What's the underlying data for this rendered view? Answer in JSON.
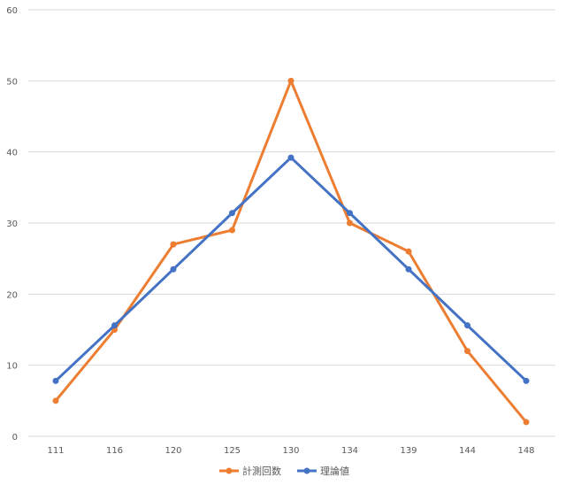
{
  "chart_data": {
    "type": "line",
    "categories": [
      "111",
      "116",
      "120",
      "125",
      "130",
      "134",
      "139",
      "144",
      "148"
    ],
    "series": [
      {
        "name": "計測回数",
        "values": [
          5,
          15,
          27,
          29,
          50,
          30,
          26,
          12,
          2
        ],
        "color": "#ED7D31"
      },
      {
        "name": "理論値",
        "values": [
          7.8,
          15.6,
          23.5,
          31.4,
          39.2,
          31.4,
          23.5,
          15.6,
          7.8
        ],
        "color": "#4472C4"
      }
    ],
    "ylim": [
      0,
      60
    ],
    "yticks": [
      0,
      10,
      20,
      30,
      40,
      50,
      60
    ],
    "grid": true,
    "legend": "bottom"
  }
}
